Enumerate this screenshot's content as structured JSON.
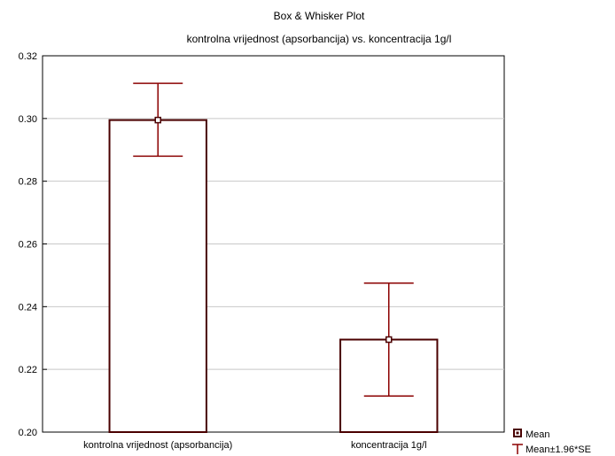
{
  "chart_data": {
    "type": "bar",
    "title": "Box & Whisker Plot",
    "subtitle": "kontrolna vrijednost (apsorbancija) vs. koncentracija 1g/l",
    "categories": [
      "kontrolna vrijednost (apsorbancija)",
      "koncentracija 1g/l"
    ],
    "series": [
      {
        "name": "Mean",
        "values": [
          0.2995,
          0.2295
        ],
        "error_low": [
          0.288,
          0.2115
        ],
        "error_high": [
          0.3112,
          0.2475
        ]
      }
    ],
    "error_label": "Mean±1.96*SE",
    "ylim": [
      0.2,
      0.32
    ],
    "yticks": [
      0.2,
      0.22,
      0.24,
      0.26,
      0.28,
      0.3,
      0.32
    ],
    "ytick_labels": [
      "0.20",
      "0.22",
      "0.24",
      "0.26",
      "0.28",
      "0.30",
      "0.32"
    ],
    "grid": true,
    "legend_position": "bottom-right",
    "colors": {
      "box": "#4a0000",
      "whisker": "#8b0000",
      "grid": "#c8c8c8",
      "axis": "#000000"
    }
  }
}
